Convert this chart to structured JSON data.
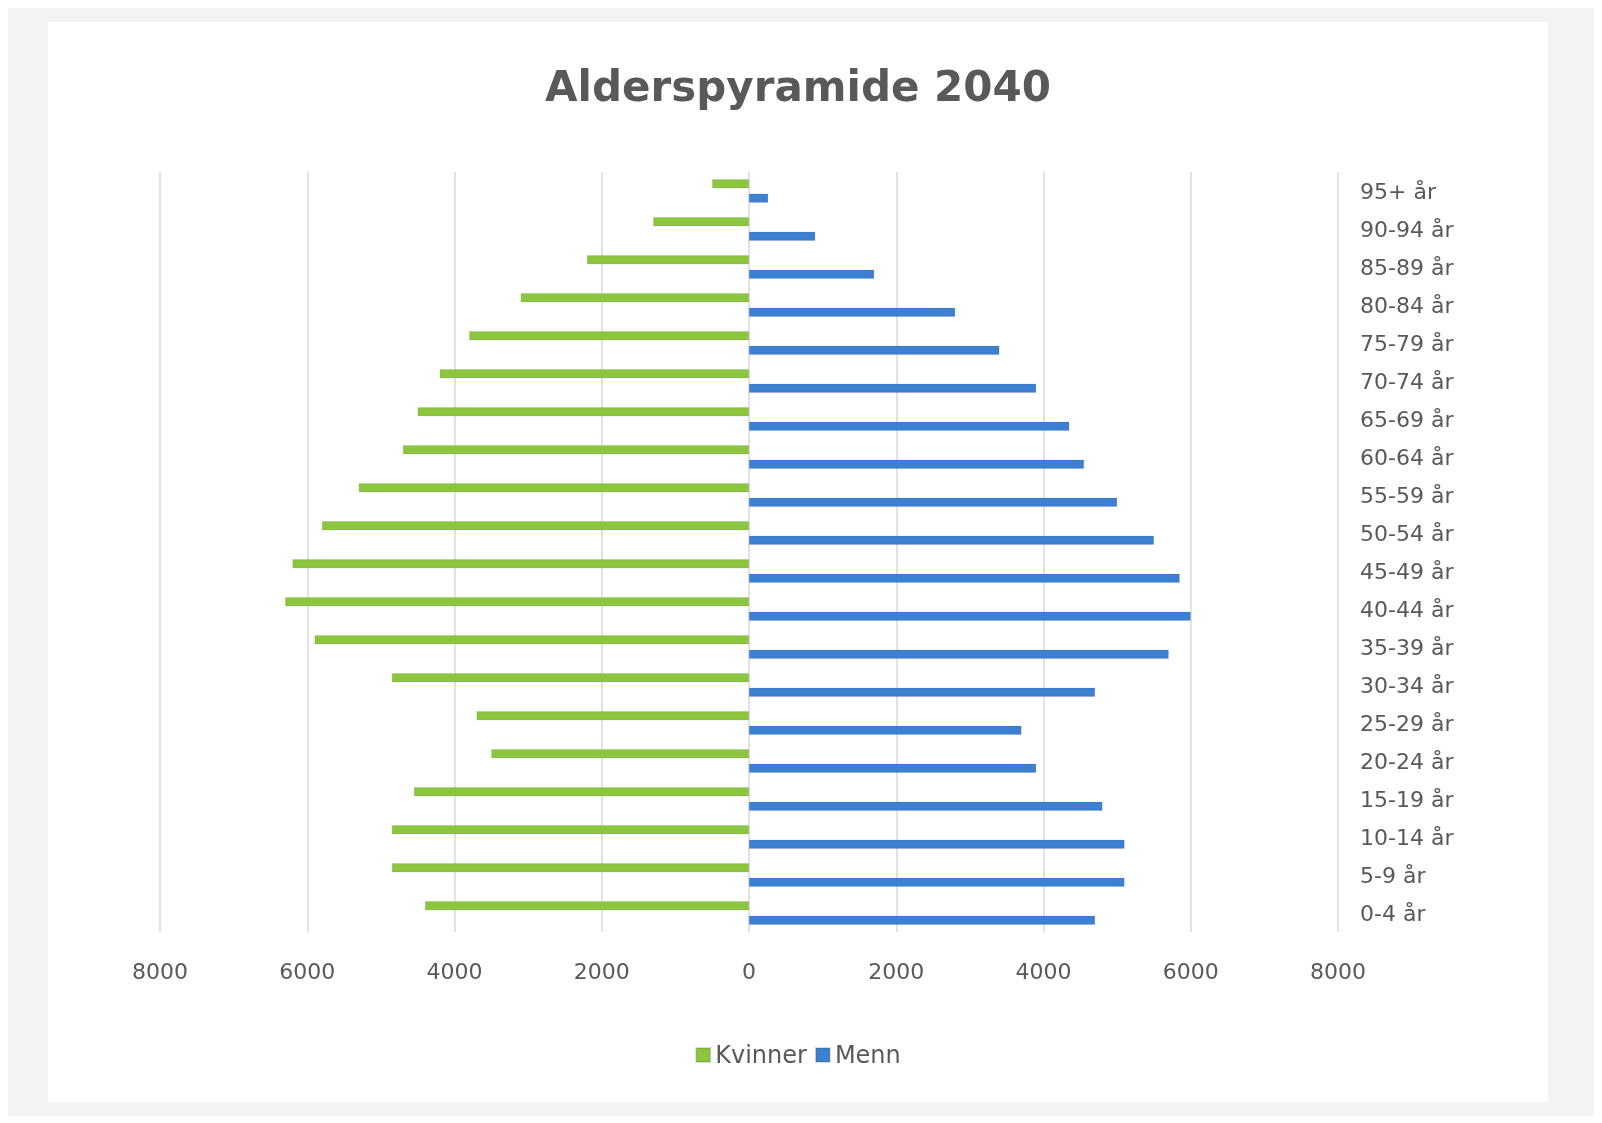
{
  "chart_data": {
    "type": "bar",
    "title": "Alderspyramide 2040",
    "orientation": "horizontal",
    "categories": [
      "95+ år",
      "90-94 år",
      "85-89 år",
      "80-84 år",
      "75-79 år",
      "70-74 år",
      "65-69 år",
      "60-64 år",
      "55-59 år",
      "50-54 år",
      "45-49 år",
      "40-44 år",
      "35-39 år",
      "30-34 år",
      "25-29 år",
      "20-24 år",
      "15-19 år",
      "10-14 år",
      "5-9 år",
      "0-4 år"
    ],
    "series": [
      {
        "name": "Kvinner",
        "color": "#8cc63f",
        "values": [
          -500,
          -1300,
          -2200,
          -3100,
          -3800,
          -4200,
          -4500,
          -4700,
          -5300,
          -5800,
          -6200,
          -6300,
          -5900,
          -4850,
          -3700,
          -3500,
          -4550,
          -4850,
          -4850,
          -4400
        ]
      },
      {
        "name": "Menn",
        "color": "#3d7fd1",
        "values": [
          260,
          900,
          1700,
          2800,
          3400,
          3900,
          4350,
          4550,
          5000,
          5500,
          5850,
          6000,
          5700,
          4700,
          3700,
          3900,
          4800,
          5100,
          5100,
          4700
        ]
      }
    ],
    "xlim": [
      -8000,
      8000
    ],
    "xticks": [
      {
        "value": -8000,
        "label": "8000"
      },
      {
        "value": -6000,
        "label": "6000"
      },
      {
        "value": -4000,
        "label": "4000"
      },
      {
        "value": -2000,
        "label": "2000"
      },
      0,
      2000,
      4000,
      6000,
      8000
    ],
    "grid": "x",
    "legend": "bottom"
  }
}
